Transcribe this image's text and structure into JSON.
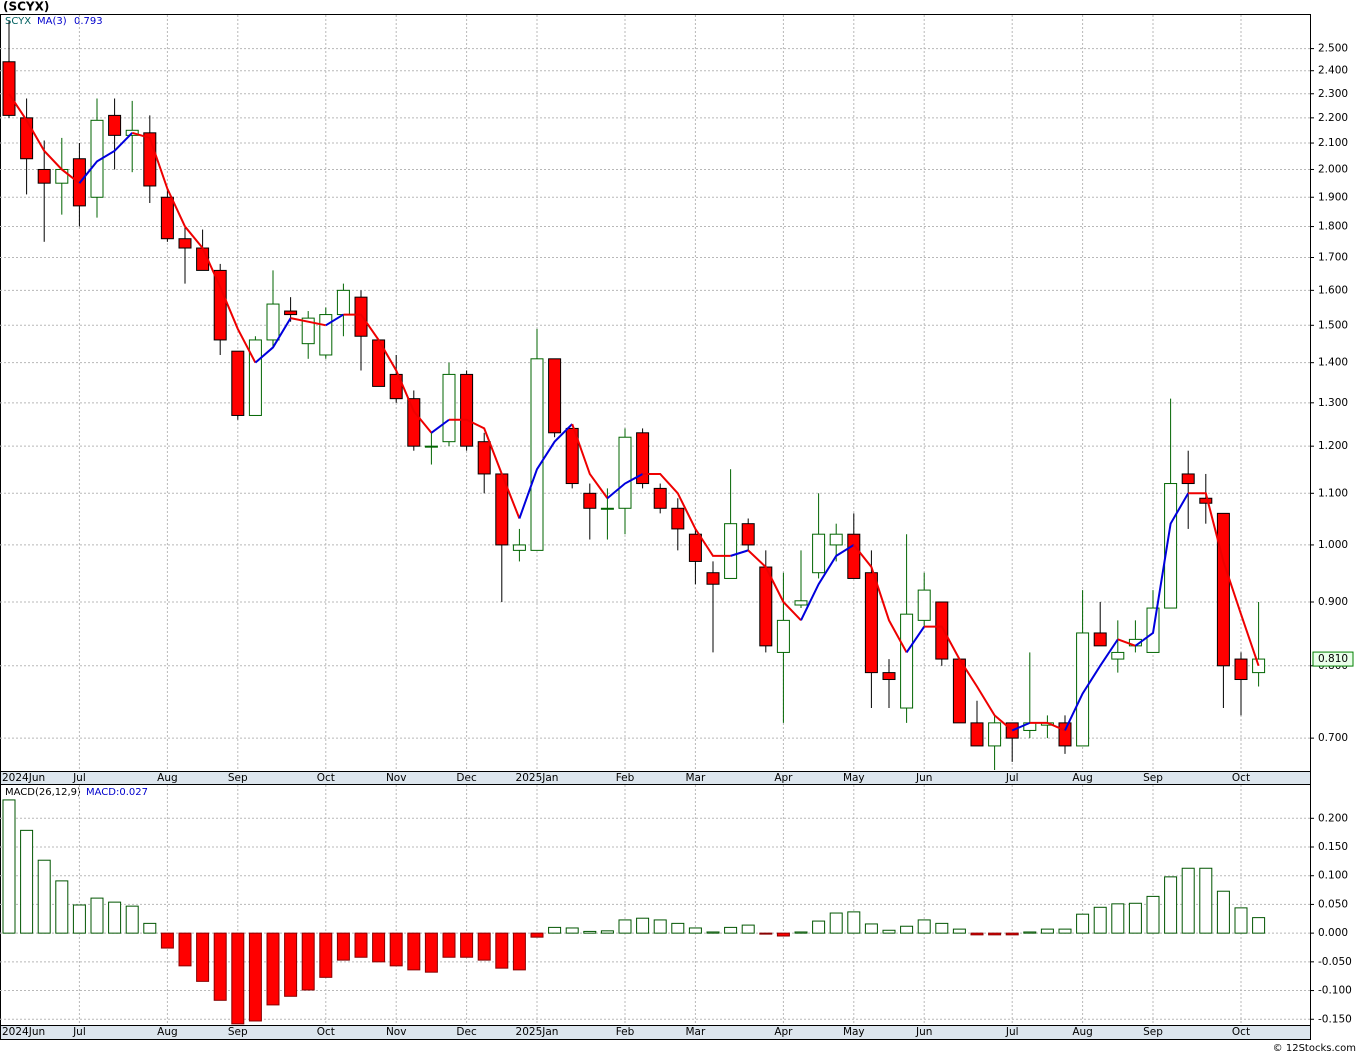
{
  "chart_data": [
    {
      "type": "candlestick",
      "title": "(SCYX)",
      "symbol": "SCYX",
      "log_scale": true,
      "grid": true,
      "up_color": "#006400",
      "down_color": "#ff0000",
      "categories": [
        "2024Jun",
        null,
        null,
        null,
        "Jul",
        null,
        null,
        null,
        null,
        "Aug",
        null,
        null,
        null,
        "Sep",
        null,
        null,
        null,
        null,
        "Oct",
        null,
        null,
        null,
        "Nov",
        null,
        null,
        null,
        "Dec",
        null,
        null,
        null,
        "2025Jan",
        null,
        null,
        null,
        null,
        "Feb",
        null,
        null,
        null,
        "Mar",
        null,
        null,
        null,
        null,
        "Apr",
        null,
        null,
        null,
        "May",
        null,
        null,
        null,
        "Jun",
        null,
        null,
        null,
        null,
        "Jul",
        null,
        null,
        null,
        "Aug",
        null,
        null,
        null,
        "Sep",
        null,
        null,
        null,
        null,
        "Oct",
        null
      ],
      "open": [
        2.44,
        2.2,
        2.0,
        1.95,
        2.04,
        1.9,
        2.21,
        2.13,
        2.14,
        1.9,
        1.76,
        1.73,
        1.66,
        1.43,
        1.27,
        1.46,
        1.54,
        1.45,
        1.42,
        1.53,
        1.58,
        1.46,
        1.37,
        1.31,
        1.2,
        1.21,
        1.37,
        1.21,
        1.14,
        0.99,
        0.99,
        1.41,
        1.24,
        1.1,
        1.07,
        1.07,
        1.23,
        1.11,
        1.07,
        1.02,
        0.95,
        0.94,
        1.04,
        0.96,
        0.82,
        0.895,
        0.95,
        1.0,
        1.02,
        0.95,
        0.79,
        0.74,
        0.87,
        0.9,
        0.81,
        0.72,
        0.69,
        0.72,
        0.71,
        0.717,
        0.72,
        0.69,
        0.85,
        0.81,
        0.83,
        0.82,
        0.89,
        1.14,
        1.09,
        1.06,
        0.81,
        0.79
      ],
      "high": [
        2.63,
        2.28,
        2.11,
        2.12,
        2.1,
        2.28,
        2.28,
        2.27,
        2.21,
        1.93,
        1.8,
        1.79,
        1.68,
        1.43,
        1.47,
        1.66,
        1.58,
        1.54,
        1.55,
        1.62,
        1.6,
        1.46,
        1.42,
        1.33,
        1.23,
        1.4,
        1.38,
        1.23,
        1.14,
        1.03,
        1.49,
        1.41,
        1.24,
        1.12,
        1.11,
        1.24,
        1.24,
        1.12,
        1.09,
        1.03,
        0.97,
        1.15,
        1.05,
        0.99,
        0.95,
        0.99,
        1.1,
        1.04,
        1.06,
        0.99,
        0.81,
        1.02,
        0.95,
        0.9,
        0.81,
        0.75,
        0.73,
        0.72,
        0.82,
        0.73,
        0.73,
        0.92,
        0.9,
        0.87,
        0.87,
        0.92,
        1.31,
        1.19,
        1.14,
        1.06,
        0.82,
        0.9
      ],
      "low": [
        2.2,
        1.91,
        1.75,
        1.84,
        1.8,
        1.83,
        2.0,
        1.99,
        1.88,
        1.75,
        1.62,
        1.66,
        1.42,
        1.26,
        1.27,
        1.44,
        1.51,
        1.41,
        1.41,
        1.47,
        1.38,
        1.34,
        1.3,
        1.19,
        1.16,
        1.2,
        1.19,
        1.1,
        0.9,
        0.97,
        0.99,
        1.22,
        1.11,
        1.01,
        1.01,
        1.02,
        1.11,
        1.06,
        0.99,
        0.93,
        0.82,
        0.94,
        0.99,
        0.82,
        0.72,
        0.89,
        0.94,
        0.97,
        0.94,
        0.74,
        0.74,
        0.72,
        0.86,
        0.8,
        0.72,
        0.69,
        0.66,
        0.67,
        0.7,
        0.7,
        0.68,
        0.69,
        0.83,
        0.79,
        0.82,
        0.82,
        0.89,
        1.03,
        1.04,
        0.74,
        0.73,
        0.77
      ],
      "close": [
        2.21,
        2.04,
        1.95,
        2.0,
        1.87,
        2.19,
        2.13,
        2.15,
        1.94,
        1.76,
        1.73,
        1.66,
        1.46,
        1.27,
        1.46,
        1.56,
        1.53,
        1.52,
        1.53,
        1.6,
        1.47,
        1.34,
        1.31,
        1.2,
        1.2,
        1.37,
        1.2,
        1.14,
        1.0,
        1.0,
        1.41,
        1.23,
        1.12,
        1.07,
        1.07,
        1.22,
        1.12,
        1.07,
        1.03,
        0.97,
        0.93,
        1.04,
        1.0,
        0.83,
        0.87,
        0.902,
        1.02,
        1.02,
        0.94,
        0.79,
        0.78,
        0.88,
        0.92,
        0.81,
        0.72,
        0.69,
        0.72,
        0.7,
        0.72,
        0.72,
        0.69,
        0.85,
        0.83,
        0.82,
        0.84,
        0.89,
        1.12,
        1.12,
        1.08,
        0.8,
        0.78,
        0.81
      ],
      "ma": {
        "name": "MA(3)",
        "last": 0.793,
        "up_color": "#0000dd",
        "down_color": "#ee0000",
        "values": [
          2.3,
          2.19,
          2.07,
          2.0,
          1.95,
          2.03,
          2.07,
          2.14,
          2.12,
          1.93,
          1.8,
          1.73,
          1.61,
          1.49,
          1.4,
          1.44,
          1.52,
          1.51,
          1.5,
          1.53,
          1.53,
          1.46,
          1.38,
          1.28,
          1.23,
          1.26,
          1.26,
          1.24,
          1.14,
          1.05,
          1.15,
          1.21,
          1.25,
          1.14,
          1.09,
          1.12,
          1.14,
          1.14,
          1.1,
          1.03,
          0.98,
          0.98,
          0.99,
          0.96,
          0.9,
          0.87,
          0.93,
          0.98,
          1.0,
          0.96,
          0.87,
          0.82,
          0.86,
          0.86,
          0.81,
          0.77,
          0.73,
          0.71,
          0.72,
          0.72,
          0.71,
          0.76,
          0.8,
          0.84,
          0.83,
          0.85,
          1.04,
          1.1,
          1.1,
          0.97,
          0.88,
          0.8
        ]
      },
      "last_price": {
        "value": 0.81,
        "label": "0.810"
      },
      "ylim": [
        0.66,
        2.66
      ],
      "yticks": [
        {
          "value": 0.7,
          "label": "0.700"
        },
        {
          "value": 0.8,
          "label": "0.800"
        },
        {
          "value": 0.9,
          "label": "0.900"
        },
        {
          "value": 1.0,
          "label": "1.000"
        },
        {
          "value": 1.1,
          "label": "1.100"
        },
        {
          "value": 1.2,
          "label": "1.200"
        },
        {
          "value": 1.3,
          "label": "1.300"
        },
        {
          "value": 1.4,
          "label": "1.400"
        },
        {
          "value": 1.5,
          "label": "1.500"
        },
        {
          "value": 1.6,
          "label": "1.600"
        },
        {
          "value": 1.7,
          "label": "1.700"
        },
        {
          "value": 1.8,
          "label": "1.800"
        },
        {
          "value": 1.9,
          "label": "1.900"
        },
        {
          "value": 2.0,
          "label": "2.000"
        },
        {
          "value": 2.1,
          "label": "2.100"
        },
        {
          "value": 2.2,
          "label": "2.200"
        },
        {
          "value": 2.3,
          "label": "2.300"
        },
        {
          "value": 2.4,
          "label": "2.400"
        },
        {
          "value": 2.5,
          "label": "2.500"
        }
      ]
    },
    {
      "type": "bar",
      "title": "MACD(26,12,9)",
      "subtitle": "MACD:0.027",
      "grid": true,
      "up_color": "#005500",
      "down_color": "#ff0000",
      "categories": [
        "2024Jun",
        null,
        null,
        null,
        "Jul",
        null,
        null,
        null,
        null,
        "Aug",
        null,
        null,
        null,
        "Sep",
        null,
        null,
        null,
        null,
        "Oct",
        null,
        null,
        null,
        "Nov",
        null,
        null,
        null,
        "Dec",
        null,
        null,
        null,
        "2025Jan",
        null,
        null,
        null,
        null,
        "Feb",
        null,
        null,
        null,
        "Mar",
        null,
        null,
        null,
        null,
        "Apr",
        null,
        null,
        null,
        "May",
        null,
        null,
        null,
        "Jun",
        null,
        null,
        null,
        null,
        "Jul",
        null,
        null,
        null,
        "Aug",
        null,
        null,
        null,
        "Sep",
        null,
        null,
        null,
        null,
        "Oct",
        null
      ],
      "values": [
        0.232,
        0.179,
        0.127,
        0.091,
        0.049,
        0.061,
        0.054,
        0.047,
        0.017,
        -0.026,
        -0.057,
        -0.084,
        -0.117,
        -0.158,
        -0.153,
        -0.125,
        -0.11,
        -0.099,
        -0.077,
        -0.047,
        -0.042,
        -0.05,
        -0.057,
        -0.064,
        -0.068,
        -0.042,
        -0.042,
        -0.047,
        -0.061,
        -0.064,
        -0.007,
        0.01,
        0.009,
        0.003,
        0.004,
        0.023,
        0.026,
        0.023,
        0.017,
        0.009,
        0.002,
        0.01,
        0.014,
        -0.001,
        -0.005,
        0.002,
        0.021,
        0.035,
        0.037,
        0.016,
        0.005,
        0.012,
        0.023,
        0.017,
        0.007,
        -0.003,
        -0.003,
        -0.003,
        0.002,
        0.007,
        0.007,
        0.033,
        0.045,
        0.051,
        0.052,
        0.064,
        0.098,
        0.113,
        0.113,
        0.073,
        0.044,
        0.027
      ],
      "ylim": [
        -0.16,
        0.258
      ],
      "yticks": [
        {
          "value": -0.15,
          "label": "-0.150"
        },
        {
          "value": -0.1,
          "label": "-0.100"
        },
        {
          "value": -0.05,
          "label": "-0.050"
        },
        {
          "value": 0,
          "label": "0.000"
        },
        {
          "value": 0.05,
          "label": "0.050"
        },
        {
          "value": 0.1,
          "label": "0.100"
        },
        {
          "value": 0.15,
          "label": "0.150"
        },
        {
          "value": 0.2,
          "label": "0.200"
        }
      ]
    }
  ],
  "footer": "© 12Stocks.com"
}
